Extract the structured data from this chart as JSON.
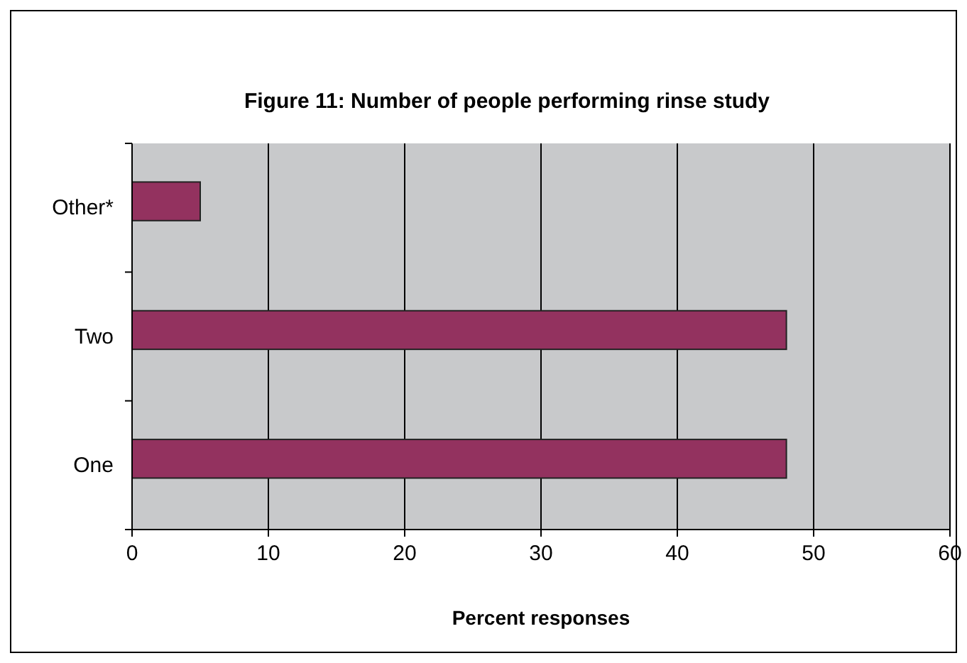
{
  "chart_data": {
    "type": "bar",
    "orientation": "horizontal",
    "title": "Figure 11: Number of people performing rinse study",
    "xlabel": "Percent responses",
    "categories": [
      "Other*",
      "Two",
      "One"
    ],
    "values": [
      5,
      48,
      48
    ],
    "color": "#93325f",
    "xlim": [
      0,
      60
    ],
    "xticks": [
      0,
      10,
      20,
      30,
      40,
      50,
      60
    ],
    "grid": "x"
  }
}
